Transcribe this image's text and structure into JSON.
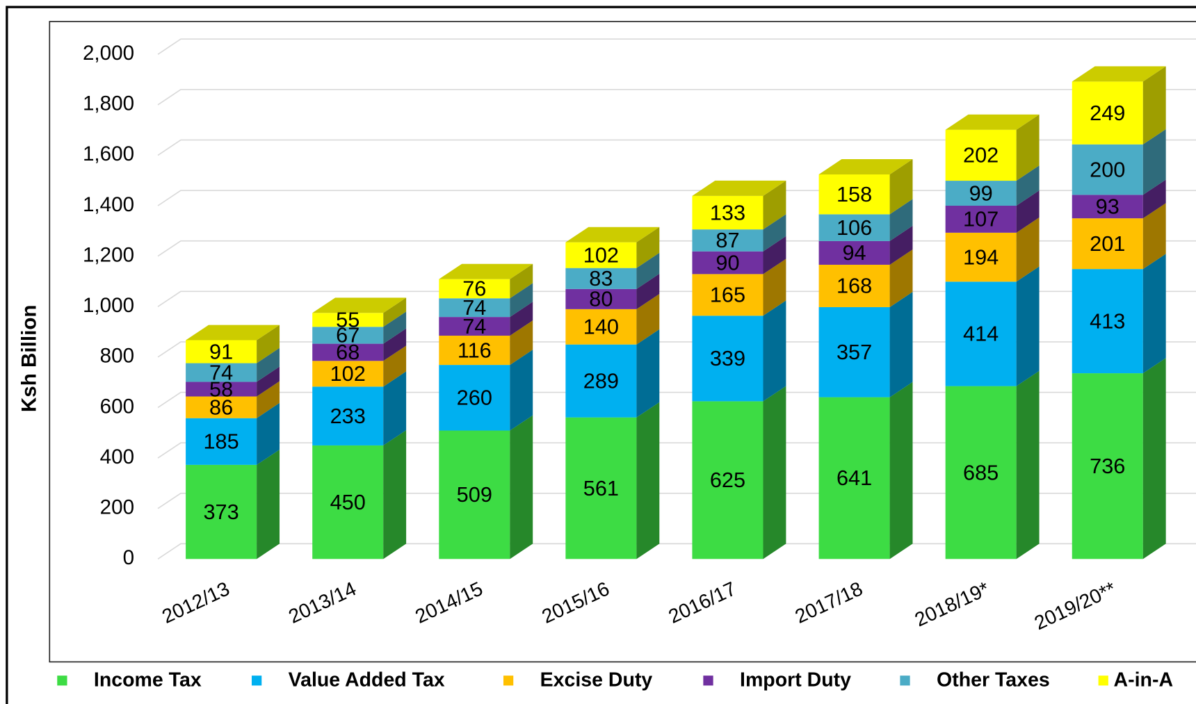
{
  "chart_data": {
    "type": "bar3d-stacked",
    "y_label": "Ksh Billion",
    "categories": [
      "2012/13",
      "2013/14",
      "2014/15",
      "2015/16",
      "2016/17",
      "2017/18",
      "2018/19*",
      "2019/20**"
    ],
    "series": [
      {
        "name": "Income Tax",
        "color": "#3ddc44",
        "values": [
          373,
          450,
          509,
          561,
          625,
          641,
          685,
          736
        ]
      },
      {
        "name": "Value Added Tax",
        "color": "#00b0f0",
        "values": [
          185,
          233,
          260,
          289,
          339,
          357,
          414,
          413
        ]
      },
      {
        "name": "Excise Duty",
        "color": "#ffc000",
        "values": [
          86,
          102,
          116,
          140,
          165,
          168,
          194,
          201
        ]
      },
      {
        "name": "Import Duty",
        "color": "#7030a0",
        "values": [
          58,
          68,
          74,
          80,
          90,
          94,
          107,
          93
        ]
      },
      {
        "name": "Other Taxes",
        "color": "#4bacc6",
        "values": [
          74,
          67,
          74,
          83,
          87,
          106,
          99,
          200
        ]
      },
      {
        "name": "A-in-A",
        "color": "#ffff00",
        "values": [
          91,
          55,
          76,
          102,
          133,
          158,
          202,
          249
        ]
      }
    ],
    "ylim": [
      0,
      2000
    ],
    "yticks": [
      0,
      200,
      400,
      600,
      800,
      {
        "value": 1000,
        "label": "1,000"
      },
      {
        "value": 1200,
        "label": "1,200"
      },
      {
        "value": 1400,
        "label": "1,400"
      },
      {
        "value": 1600,
        "label": "1,600"
      },
      {
        "value": 1800,
        "label": "1,800"
      },
      {
        "value": 2000,
        "label": "2,000"
      }
    ],
    "grid": true,
    "legend": "bottom"
  }
}
